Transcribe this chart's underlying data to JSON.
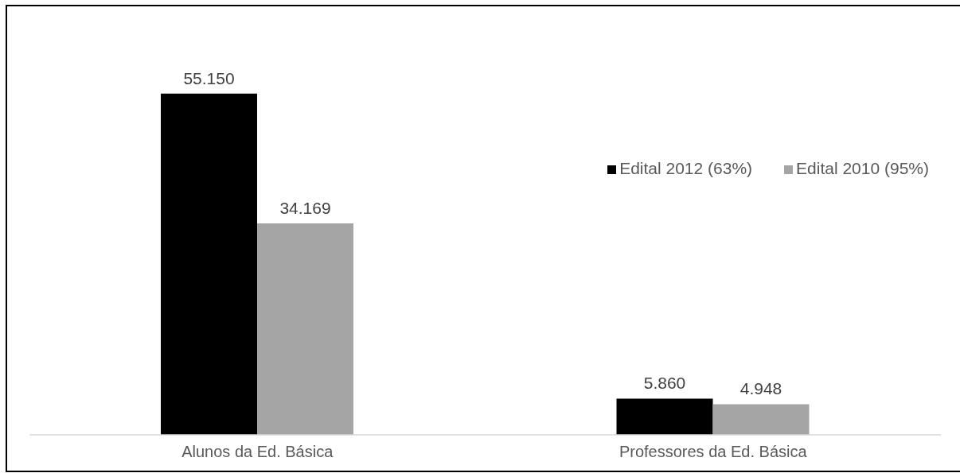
{
  "chart_data": {
    "type": "bar",
    "categories": [
      "Alunos da Ed. Básica",
      "Professores da Ed. Básica"
    ],
    "series": [
      {
        "name": "Edital 2012 (63%)",
        "color": "#000000",
        "values": [
          55150,
          5860
        ],
        "value_labels": [
          "55.150",
          "5.860"
        ]
      },
      {
        "name": "Edital 2010 (95%)",
        "color": "#a5a5a5",
        "values": [
          34169,
          4948
        ],
        "value_labels": [
          "34.169",
          "4.948"
        ]
      }
    ],
    "legend": "top right",
    "grid": false
  }
}
